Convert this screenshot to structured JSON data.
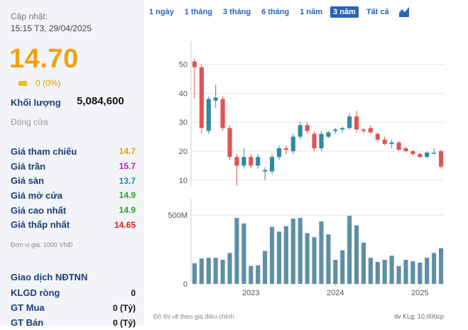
{
  "summary": {
    "update_label": "Cập nhật:",
    "update_time": "15:15 T3, 29/04/2025",
    "price": "14.70",
    "change": "0 (0%)",
    "volume_label": "Khối lượng",
    "volume_value": "5,084,600",
    "close_label": "Đóng cửa"
  },
  "stats": [
    {
      "label": "Giá tham chiếu",
      "value": "14.7",
      "color": "#e3a000"
    },
    {
      "label": "Giá trần",
      "value": "15.7",
      "color": "#b01ad0"
    },
    {
      "label": "Giá sàn",
      "value": "13.7",
      "color": "#1a8fb0"
    },
    {
      "label": "Giá mở cửa",
      "value": "14.9",
      "color": "#2aa02a"
    },
    {
      "label": "Giá cao nhất",
      "value": "14.9",
      "color": "#2aa02a"
    },
    {
      "label": "Giá thấp nhất",
      "value": "14.65",
      "color": "#d92020"
    }
  ],
  "unit_note": "Đơn vị giá: 1000 VNĐ",
  "foreign": {
    "title": "Giao dịch NĐTNN",
    "rows": [
      {
        "label": "KLGD ròng",
        "value": "0"
      },
      {
        "label": "GT Mua",
        "value": "0 (Tỷ)"
      },
      {
        "label": "GT Bán",
        "value": "0 (Tỷ)"
      }
    ]
  },
  "tabs": [
    {
      "label": "1 ngày",
      "active": false
    },
    {
      "label": "1 tháng",
      "active": false
    },
    {
      "label": "3 tháng",
      "active": false
    },
    {
      "label": "6 tháng",
      "active": false
    },
    {
      "label": "1 năm",
      "active": false
    },
    {
      "label": "3 năm",
      "active": true
    },
    {
      "label": "Tất cả",
      "active": false
    }
  ],
  "chart_icon": "area-chart-icon",
  "chart_data": {
    "type": "candlestick",
    "price_axis": {
      "ticks": [
        10,
        20,
        30,
        40,
        50
      ],
      "ylim": [
        8,
        58
      ]
    },
    "volume_axis": {
      "ticks": [
        {
          "v": 0,
          "label": "0"
        },
        {
          "v": 500,
          "label": "500M"
        }
      ],
      "ylim": [
        0,
        620
      ]
    },
    "x_labels": [
      {
        "label": "2023",
        "i": 8.5
      },
      {
        "label": "2024",
        "i": 20.5
      },
      {
        "label": "2025",
        "i": 32.5
      }
    ],
    "candles": [
      {
        "o": 51,
        "h": 52,
        "l": 38,
        "c": 49
      },
      {
        "o": 49,
        "h": 50,
        "l": 26,
        "c": 28
      },
      {
        "o": 27,
        "h": 39,
        "l": 26,
        "c": 38
      },
      {
        "o": 37.5,
        "h": 43,
        "l": 35,
        "c": 38.5
      },
      {
        "o": 38,
        "h": 39,
        "l": 27,
        "c": 28
      },
      {
        "o": 28,
        "h": 29,
        "l": 17,
        "c": 18
      },
      {
        "o": 18,
        "h": 19,
        "l": 8,
        "c": 15
      },
      {
        "o": 15,
        "h": 21,
        "l": 14,
        "c": 18
      },
      {
        "o": 18,
        "h": 19,
        "l": 14,
        "c": 15
      },
      {
        "o": 15,
        "h": 19,
        "l": 14,
        "c": 18
      },
      {
        "o": 13,
        "h": 14.5,
        "l": 10,
        "c": 13.5
      },
      {
        "o": 13,
        "h": 19,
        "l": 12,
        "c": 18
      },
      {
        "o": 18,
        "h": 22,
        "l": 17,
        "c": 21
      },
      {
        "o": 21,
        "h": 22,
        "l": 19,
        "c": 20.5
      },
      {
        "o": 20,
        "h": 26,
        "l": 19,
        "c": 25
      },
      {
        "o": 25,
        "h": 30,
        "l": 24,
        "c": 29
      },
      {
        "o": 29,
        "h": 30,
        "l": 26,
        "c": 27
      },
      {
        "o": 26,
        "h": 27,
        "l": 20,
        "c": 21
      },
      {
        "o": 21,
        "h": 27,
        "l": 20,
        "c": 26
      },
      {
        "o": 25,
        "h": 27,
        "l": 24.5,
        "c": 26.5
      },
      {
        "o": 27,
        "h": 28,
        "l": 26,
        "c": 27.5
      },
      {
        "o": 27.5,
        "h": 28.5,
        "l": 26.5,
        "c": 28
      },
      {
        "o": 28,
        "h": 33,
        "l": 27.5,
        "c": 32
      },
      {
        "o": 32,
        "h": 34,
        "l": 26.5,
        "c": 27.5
      },
      {
        "o": 27.5,
        "h": 28,
        "l": 26,
        "c": 27
      },
      {
        "o": 28,
        "h": 29,
        "l": 26,
        "c": 26.5
      },
      {
        "o": 26,
        "h": 26.5,
        "l": 23,
        "c": 24
      },
      {
        "o": 24,
        "h": 25,
        "l": 22,
        "c": 22.5
      },
      {
        "o": 22.5,
        "h": 24,
        "l": 21,
        "c": 23
      },
      {
        "o": 23,
        "h": 23.5,
        "l": 20,
        "c": 20.5
      },
      {
        "o": 21,
        "h": 21.5,
        "l": 19.5,
        "c": 20
      },
      {
        "o": 20,
        "h": 20.5,
        "l": 18.5,
        "c": 19
      },
      {
        "o": 19,
        "h": 19.5,
        "l": 17.5,
        "c": 18
      },
      {
        "o": 18,
        "h": 20,
        "l": 17.5,
        "c": 19.5
      },
      {
        "o": 19.5,
        "h": 21,
        "l": 19,
        "c": 19.5
      },
      {
        "o": 20,
        "h": 20.5,
        "l": 14,
        "c": 14.7
      }
    ],
    "volumes": [
      150,
      185,
      190,
      190,
      175,
      225,
      480,
      440,
      130,
      135,
      240,
      415,
      380,
      420,
      475,
      480,
      370,
      340,
      455,
      360,
      175,
      245,
      495,
      425,
      300,
      190,
      160,
      175,
      205,
      130,
      175,
      165,
      155,
      190,
      225,
      260
    ],
    "up_color": "#2e8aa3",
    "down_color": "#e05454",
    "volume_color": "#5e8fa6"
  },
  "footer": {
    "left": "Đồ thị vẽ theo giá điều chỉnh",
    "right": "dv KLg: 10,000cp"
  }
}
